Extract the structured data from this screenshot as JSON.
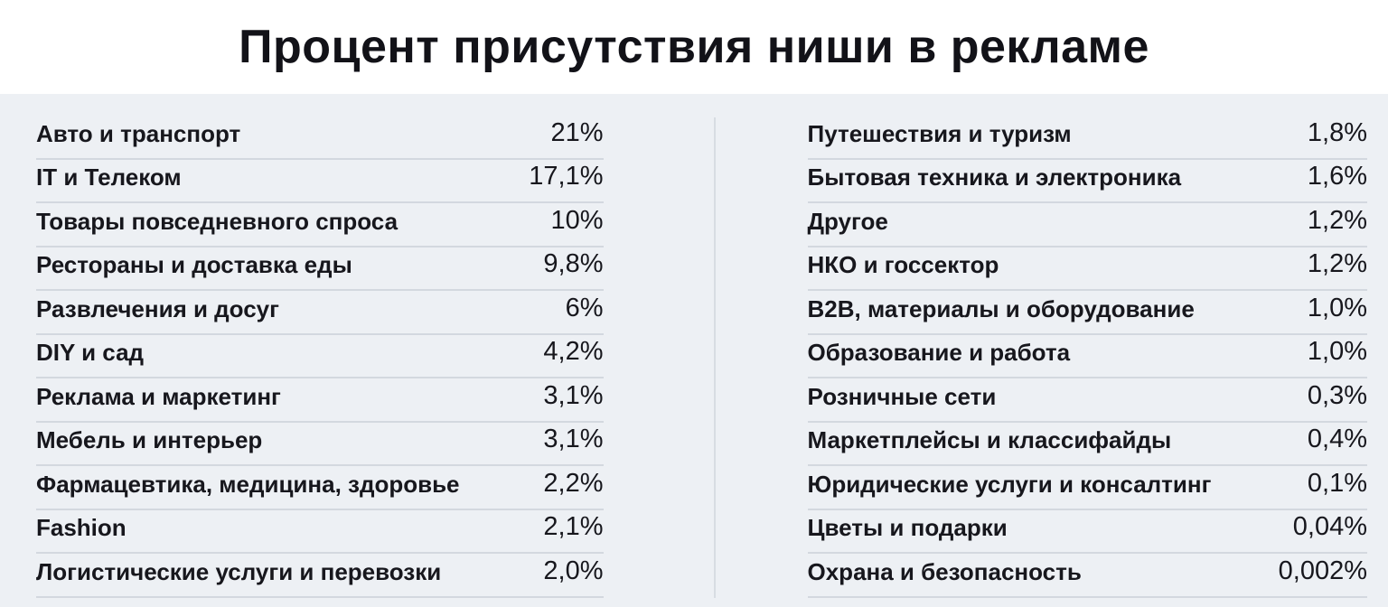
{
  "header": {
    "title": "Процент присутствия ниши в рекламе"
  },
  "colors": {
    "page_background": "#edf0f4",
    "header_background": "#ffffff",
    "text": "#16161c",
    "row_divider": "#d3d8df",
    "column_divider": "#d7dce2"
  },
  "chart_data": {
    "type": "table",
    "title": "Процент присутствия ниши в рекламе",
    "unit": "%",
    "decimal_separator": ",",
    "legend_position": "none",
    "columns": [
      {
        "rows": [
          {
            "label": "Авто и транспорт",
            "display": "21%",
            "percent": 21
          },
          {
            "label": "IT и Телеком",
            "display": "17,1%",
            "percent": 17.1
          },
          {
            "label": "Товары повседневного спроса",
            "display": "10%",
            "percent": 10
          },
          {
            "label": "Рестораны и доставка еды",
            "display": "9,8%",
            "percent": 9.8
          },
          {
            "label": "Развлечения и досуг",
            "display": "6%",
            "percent": 6
          },
          {
            "label": "DIY и сад",
            "display": "4,2%",
            "percent": 4.2
          },
          {
            "label": "Реклама и маркетинг",
            "display": "3,1%",
            "percent": 3.1
          },
          {
            "label": "Мебель и интерьер",
            "display": "3,1%",
            "percent": 3.1
          },
          {
            "label": "Фармацевтика, медицина, здоровье",
            "display": "2,2%",
            "percent": 2.2
          },
          {
            "label": "Fashion",
            "display": "2,1%",
            "percent": 2.1
          },
          {
            "label": "Логистические услуги и перевозки",
            "display": "2,0%",
            "percent": 2.0
          }
        ]
      },
      {
        "rows": [
          {
            "label": "Путешествия и туризм",
            "display": "1,8%",
            "percent": 1.8
          },
          {
            "label": "Бытовая техника и электроника",
            "display": "1,6%",
            "percent": 1.6
          },
          {
            "label": "Другое",
            "display": "1,2%",
            "percent": 1.2
          },
          {
            "label": "НКО и госсектор",
            "display": "1,2%",
            "percent": 1.2
          },
          {
            "label": "B2B, материалы и оборудование",
            "display": "1,0%",
            "percent": 1.0
          },
          {
            "label": "Образование и работа",
            "display": "1,0%",
            "percent": 1.0
          },
          {
            "label": "Розничные сети",
            "display": "0,3%",
            "percent": 0.3
          },
          {
            "label": "Маркетплейсы и классифайды",
            "display": "0,4%",
            "percent": 0.4
          },
          {
            "label": "Юридические услуги и консалтинг",
            "display": "0,1%",
            "percent": 0.1
          },
          {
            "label": "Цветы и подарки",
            "display": "0,04%",
            "percent": 0.04
          },
          {
            "label": "Охрана и безопасность",
            "display": "0,002%",
            "percent": 0.002
          }
        ]
      }
    ]
  }
}
